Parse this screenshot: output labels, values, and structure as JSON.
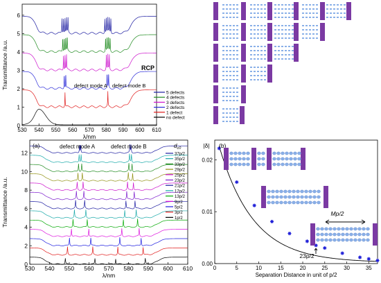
{
  "chart_data": [
    {
      "type": "line",
      "panel": "top-left",
      "ylabel": "Transmittance /a.u.",
      "xlabel": "λ/nm",
      "xlim": [
        530,
        610
      ],
      "ylim": [
        0,
        6.6
      ],
      "xticks": [
        "530",
        "540",
        "550",
        "560",
        "570",
        "580",
        "590",
        "600",
        "610"
      ],
      "yticks": [
        "0",
        "1",
        "2",
        "3",
        "4",
        "5",
        "6"
      ],
      "badge": "RCP",
      "annotations": [
        "defect mode A",
        "defect mode B"
      ],
      "legend_position": "bottom-right",
      "series": [
        {
          "name": "5 defects",
          "color": "#1a1aa0",
          "offset": 5,
          "peaks": 5
        },
        {
          "name": "4 defects",
          "color": "#1e8a1e",
          "offset": 4,
          "peaks": 4
        },
        {
          "name": "3 defects",
          "color": "#cc10cc",
          "offset": 3,
          "peaks": 3
        },
        {
          "name": "2 defects",
          "color": "#2a2ad8",
          "offset": 2,
          "peaks": 2
        },
        {
          "name": "1 defect",
          "color": "#e01818",
          "offset": 1,
          "peaks": 1
        },
        {
          "name": "no defect",
          "color": "#000000",
          "offset": 0,
          "peaks": 0
        }
      ]
    },
    {
      "type": "line",
      "panel": "bottom-left",
      "panel_label": "(a)",
      "ylabel": "Transmittance /a.u.",
      "xlabel": "λ/nm",
      "xlim": [
        530,
        610
      ],
      "ylim": [
        0,
        13.4
      ],
      "xticks": [
        "530",
        "540",
        "550",
        "560",
        "570",
        "580",
        "590",
        "600",
        "610"
      ],
      "yticks": [
        "0",
        "2",
        "4",
        "6",
        "8",
        "10",
        "12"
      ],
      "annotations": [
        "defect mode A",
        "defect mode B"
      ],
      "legend_title": "d",
      "legend_title_sub": "c0",
      "legend_position": "right",
      "series": [
        {
          "name": "37p/2",
          "color": "#1a1aa0",
          "offset": 12,
          "sep": 0.3
        },
        {
          "name": "35p/2",
          "color": "#16a8a8",
          "offset": 11,
          "sep": 0.5
        },
        {
          "name": "33p/2",
          "color": "#1e8a1e",
          "offset": 10,
          "sep": 0.8
        },
        {
          "name": "29p/2",
          "color": "#909010",
          "offset": 9,
          "sep": 1.1
        },
        {
          "name": "25p/2",
          "color": "#cc10cc",
          "offset": 8,
          "sep": 1.5
        },
        {
          "name": "23p/2",
          "color": "#7a1acc",
          "offset": 7,
          "sep": 1.9
        },
        {
          "name": "21p/2",
          "color": "#1a1aa0",
          "offset": 6,
          "sep": 2.3
        },
        {
          "name": "17p/2",
          "color": "#16a8a8",
          "offset": 5,
          "sep": 2.9
        },
        {
          "name": "13p/2",
          "color": "#00a800",
          "offset": 4,
          "sep": 3.6
        },
        {
          "name": "9p/2",
          "color": "#dd10dd",
          "offset": 3,
          "sep": 4.4
        },
        {
          "name": "5p/2",
          "color": "#1a1adf",
          "offset": 2,
          "sep": 5.4
        },
        {
          "name": "3p/2",
          "color": "#e01818",
          "offset": 1,
          "sep": 6.4
        },
        {
          "name": "1p/2",
          "color": "#000000",
          "offset": 0,
          "sep": 7.5
        }
      ]
    },
    {
      "type": "scatter",
      "panel": "bottom-right",
      "panel_label": "(b)",
      "ylabel": "|δ|",
      "xlabel": "Separation Distance in unit of p/2",
      "xlim": [
        0,
        37
      ],
      "ylim": [
        0,
        0.0238
      ],
      "xticks": [
        "0",
        "5",
        "10",
        "15",
        "20",
        "25",
        "30",
        "35"
      ],
      "yticks": [
        "0.00",
        "0.01",
        "0.02"
      ],
      "annotations": [
        "Mp/2",
        "23p/2"
      ],
      "marker_color": "#2020d8",
      "x": [
        1,
        5,
        9,
        13,
        17,
        21,
        23,
        25,
        29,
        33,
        35,
        37
      ],
      "y": [
        0.0222,
        0.0157,
        0.0112,
        0.0081,
        0.0058,
        0.0043,
        0.0035,
        0.003,
        0.002,
        0.0012,
        0.0009,
        0.0006
      ]
    }
  ],
  "structures": {
    "layer_color": "#7b3aa3",
    "helix_color": "#8ab0e8"
  }
}
